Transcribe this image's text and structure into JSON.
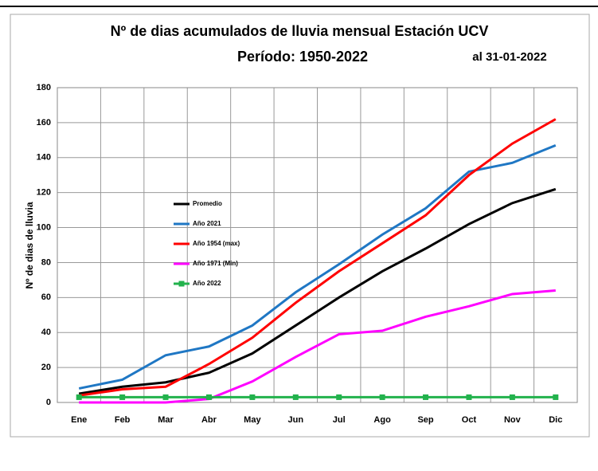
{
  "chart_data": {
    "type": "line",
    "title": "Nº de dias acumulados de lluvia mensual Estación UCV",
    "subtitle": "Período:  1950-2022",
    "annotation": "al 31-01-2022",
    "y_label": "Nº de dias de lluvia",
    "categories": [
      "Ene",
      "Feb",
      "Mar",
      "Abr",
      "May",
      "Jun",
      "Jul",
      "Ago",
      "Sep",
      "Oct",
      "Nov",
      "Dic"
    ],
    "series": [
      {
        "name": "Promedio",
        "color": "#000000",
        "values": [
          5,
          9,
          11.5,
          17,
          28,
          44,
          60,
          75,
          88,
          102,
          114,
          122
        ]
      },
      {
        "name": "Año 2021",
        "color": "#1f77c4",
        "values": [
          8,
          13,
          27,
          32,
          44,
          63,
          79,
          96,
          111,
          132,
          137,
          147
        ]
      },
      {
        "name": "Año 1954 (max)",
        "color": "#ff0000",
        "values": [
          4,
          7.5,
          9,
          22,
          37,
          57,
          75,
          91,
          107,
          130,
          148,
          162
        ]
      },
      {
        "name": "Año 1971 (Min)",
        "color": "#ff00ff",
        "values": [
          0,
          0,
          0,
          2,
          12,
          26,
          39,
          41,
          49,
          55,
          62,
          64
        ]
      },
      {
        "name": "Año 2022",
        "color": "#22b24c",
        "marker": "square",
        "values": [
          3,
          3,
          3,
          3,
          3,
          3,
          3,
          3,
          3,
          3,
          3,
          3
        ]
      }
    ],
    "ylim": [
      0,
      180
    ],
    "yticks": [
      0,
      20,
      40,
      60,
      80,
      100,
      120,
      140,
      160,
      180
    ],
    "grid": true
  }
}
